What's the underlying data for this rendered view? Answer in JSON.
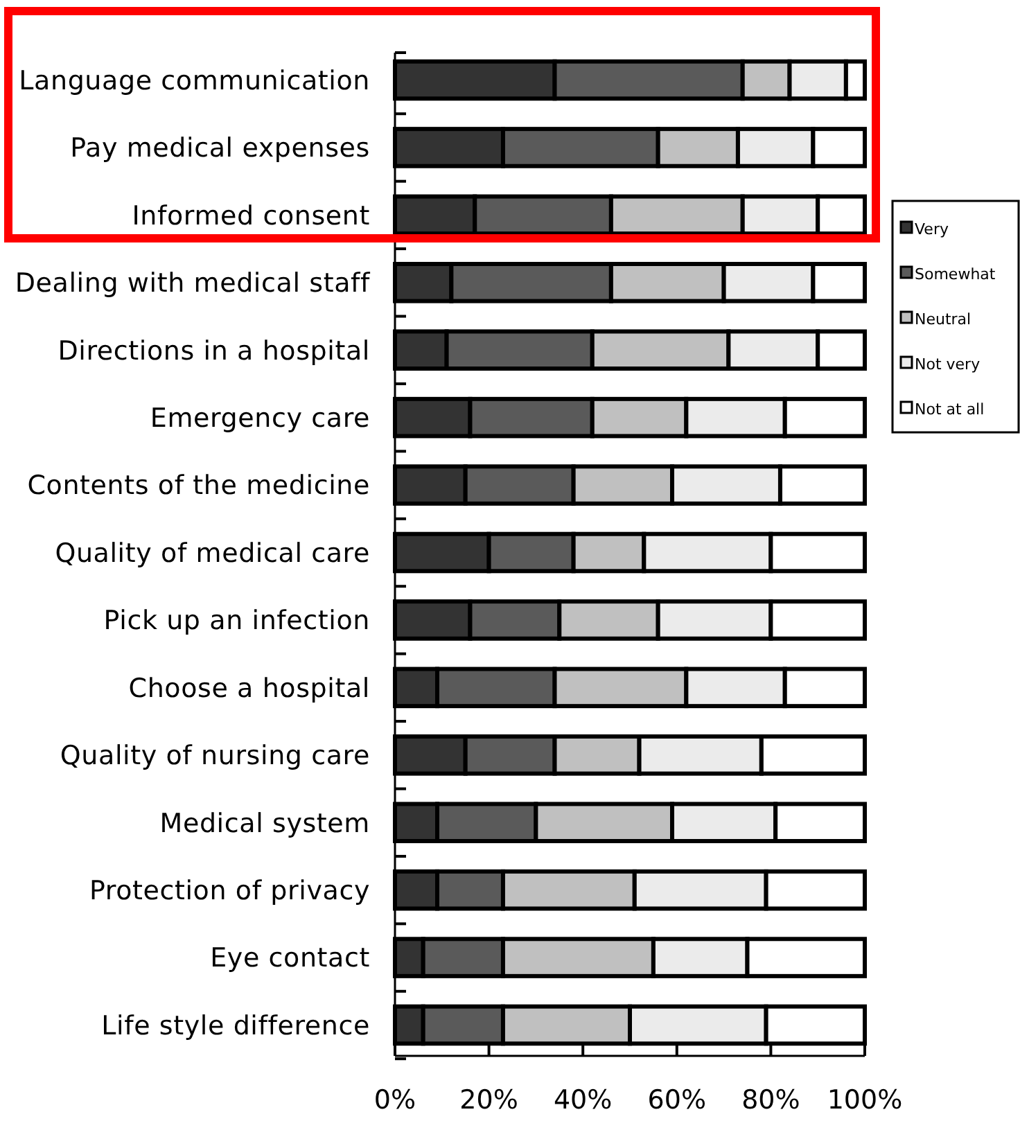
{
  "chart_data": {
    "type": "bar",
    "orientation": "horizontal",
    "stacked": true,
    "categories": [
      "Language communication",
      "Pay medical expenses",
      "Informed consent",
      "Dealing with medical staff",
      "Directions in a hospital",
      "Emergency care",
      "Contents of the medicine",
      "Quality of medical care",
      "Pick up an infection",
      "Choose a hospital",
      "Quality of nursing care",
      "Medical system",
      "Protection of privacy",
      "Eye contact",
      "Life style difference"
    ],
    "series": [
      {
        "name": "Very",
        "color": "#333333",
        "values": [
          34,
          23,
          17,
          12,
          11,
          16,
          15,
          20,
          16,
          9,
          15,
          9,
          9,
          6,
          6
        ]
      },
      {
        "name": "Somewhat",
        "color": "#5a5a5a",
        "values": [
          40,
          33,
          29,
          34,
          31,
          26,
          23,
          18,
          19,
          25,
          19,
          21,
          14,
          17,
          17
        ]
      },
      {
        "name": "Neutral",
        "color": "#c0c0c0",
        "values": [
          10,
          17,
          28,
          24,
          29,
          20,
          21,
          15,
          21,
          28,
          18,
          29,
          28,
          32,
          27
        ]
      },
      {
        "name": "Not very",
        "color": "#ebebeb",
        "values": [
          12,
          16,
          16,
          19,
          19,
          21,
          23,
          27,
          24,
          21,
          26,
          22,
          28,
          20,
          29
        ]
      },
      {
        "name": "Not at all",
        "color": "#ffffff",
        "values": [
          4,
          11,
          10,
          11,
          10,
          17,
          18,
          20,
          20,
          17,
          22,
          19,
          21,
          25,
          21
        ]
      }
    ],
    "xlim": [
      0,
      100
    ],
    "xticks": [
      {
        "value": 0,
        "label": "0%"
      },
      {
        "value": 20,
        "label": "20%"
      },
      {
        "value": 40,
        "label": "40%"
      },
      {
        "value": 60,
        "label": "60%"
      },
      {
        "value": 80,
        "label": "80%"
      },
      {
        "value": 100,
        "label": "100%"
      }
    ],
    "legend": "right"
  }
}
